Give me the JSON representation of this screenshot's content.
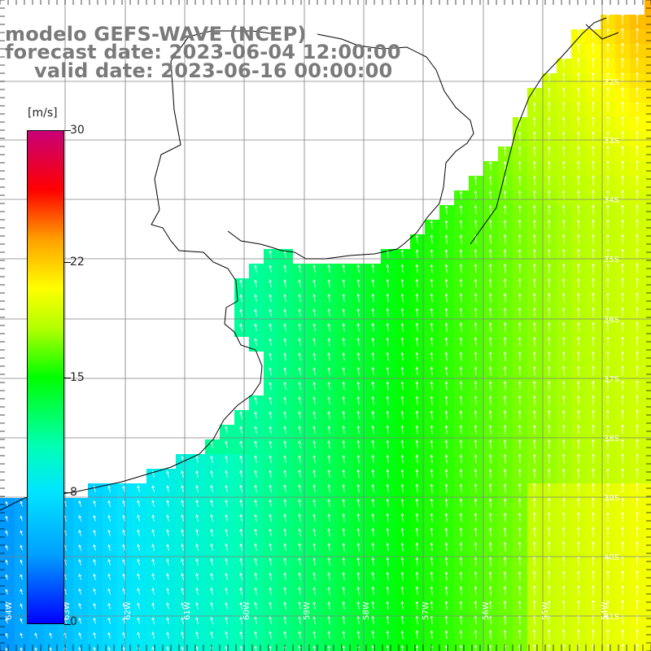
{
  "title": {
    "line1": "modelo GEFS-WAVE (NCEP)",
    "line2": "forecast date: 2023-06-04 12:00:00",
    "line3": "valid date: 2023-06-16 00:00:00"
  },
  "colorbar": {
    "unit": "[m/s]",
    "min": 0,
    "max": 30,
    "tick_labels": [
      "30",
      "22",
      "15",
      "8",
      "0"
    ],
    "tick_values": [
      30,
      22,
      15,
      8,
      0
    ],
    "colors": [
      "#0000ff",
      "#00a0ff",
      "#00e6ff",
      "#00ffb4",
      "#00ff00",
      "#b4ff00",
      "#ffff00",
      "#ffa000",
      "#ff0000",
      "#c80078"
    ]
  },
  "map": {
    "lat_labels": [
      "32S",
      "33S",
      "34S",
      "35S",
      "36S",
      "37S",
      "38S",
      "39S",
      "40S",
      "41S"
    ],
    "lon_labels": [
      "64W",
      "63W",
      "62W",
      "61W",
      "60W",
      "59W",
      "58W",
      "57W",
      "56W",
      "55W",
      "54W"
    ],
    "land_color": "#ffffff",
    "grid_color": "#808080",
    "coast_color": "#000000",
    "arrow_color": "#ffffff"
  }
}
